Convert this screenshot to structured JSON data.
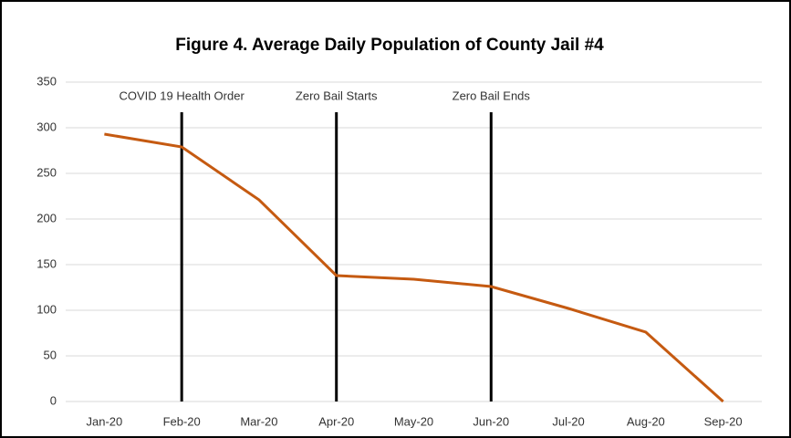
{
  "chart_data": {
    "type": "line",
    "title": "Figure 4. Average Daily Population of County Jail #4",
    "categories": [
      "Jan-20",
      "Feb-20",
      "Mar-20",
      "Apr-20",
      "May-20",
      "Jun-20",
      "Jul-20",
      "Aug-20",
      "Sep-20"
    ],
    "values": [
      293,
      279,
      221,
      138,
      134,
      126,
      102,
      76,
      0
    ],
    "color": "#c55a11",
    "ylim": [
      0,
      350
    ],
    "yticks": [
      0,
      50,
      100,
      150,
      200,
      250,
      300,
      350
    ],
    "grid": true,
    "annotations": [
      {
        "text": "COVID 19 Health Order",
        "at": "Feb-20"
      },
      {
        "text": "Zero Bail Starts",
        "at": "Apr-20"
      },
      {
        "text": "Zero Bail Ends",
        "at": "Jun-20"
      }
    ]
  }
}
